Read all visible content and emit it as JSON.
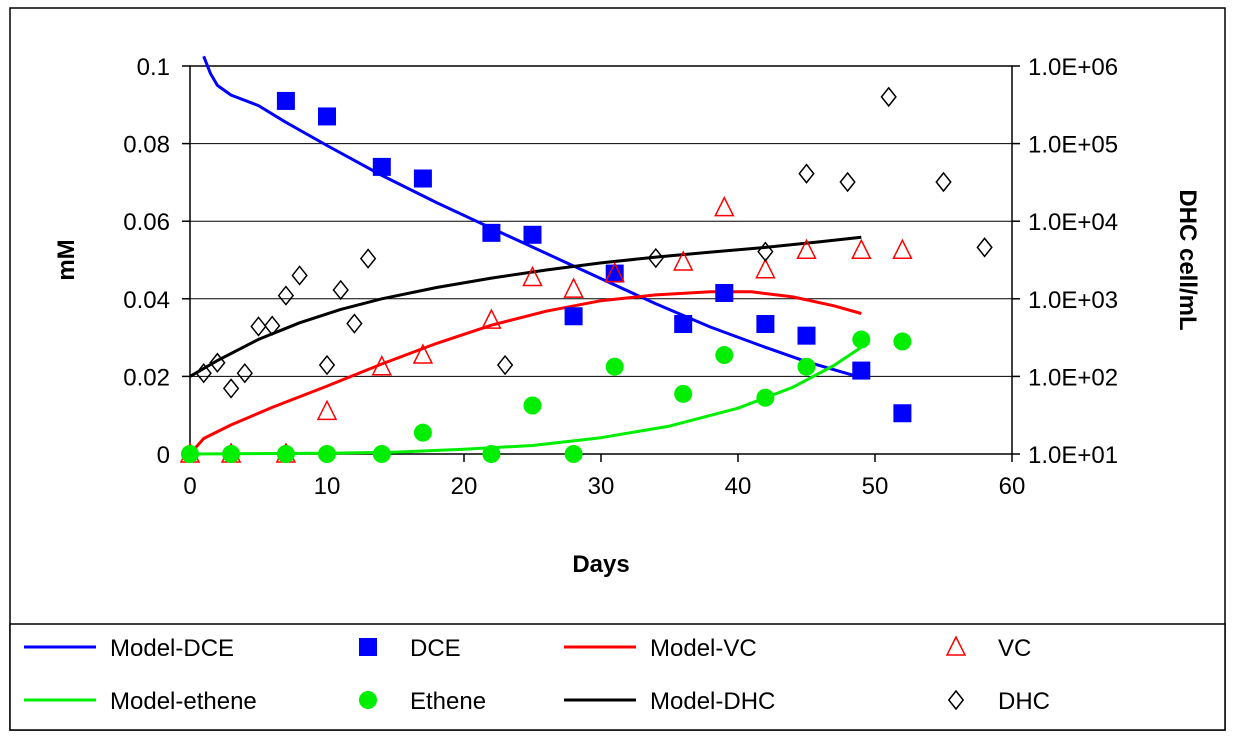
{
  "chart_data": {
    "type": "scatter",
    "xlabel": "Days",
    "ylabel": "mM",
    "y2label": "DHC cell/mL",
    "xlim": [
      0,
      60
    ],
    "ylim": [
      0,
      0.1
    ],
    "y2lim": [
      10,
      1000000
    ],
    "y2scale": "log",
    "grid": "horizontal major gridlines",
    "legend_position": "bottom",
    "x_ticks": [
      "0",
      "10",
      "20",
      "30",
      "40",
      "50",
      "60"
    ],
    "y_ticks": [
      "0",
      "0.02",
      "0.04",
      "0.06",
      "0.08",
      "0.1"
    ],
    "y2_ticks": [
      "1.0E+01",
      "1.0E+02",
      "1.0E+03",
      "1.0E+04",
      "1.0E+05",
      "1.0E+06"
    ],
    "series": [
      {
        "name": "Model-DCE",
        "kind": "line",
        "axis": "left",
        "color": "#0000ff",
        "points": [
          [
            1,
            0.1025
          ],
          [
            1.5,
            0.098
          ],
          [
            2,
            0.095
          ],
          [
            3,
            0.0925
          ],
          [
            5,
            0.0898
          ],
          [
            7,
            0.0855
          ],
          [
            10,
            0.0795
          ],
          [
            14,
            0.0718
          ],
          [
            18,
            0.0648
          ],
          [
            22,
            0.0582
          ],
          [
            26,
            0.0517
          ],
          [
            30,
            0.0452
          ],
          [
            34,
            0.0387
          ],
          [
            38,
            0.0327
          ],
          [
            42,
            0.0275
          ],
          [
            45,
            0.0238
          ],
          [
            47.5,
            0.0212
          ],
          [
            49,
            0.0197
          ]
        ]
      },
      {
        "name": "DCE",
        "kind": "scatter",
        "marker": "square",
        "axis": "left",
        "color": "#0000ff",
        "points": [
          [
            7,
            0.091
          ],
          [
            10,
            0.087
          ],
          [
            14,
            0.074
          ],
          [
            17,
            0.071
          ],
          [
            22,
            0.057
          ],
          [
            25,
            0.0565
          ],
          [
            28,
            0.0355
          ],
          [
            31,
            0.0465
          ],
          [
            36,
            0.0335
          ],
          [
            39,
            0.0415
          ],
          [
            42,
            0.0335
          ],
          [
            45,
            0.0305
          ],
          [
            49,
            0.0215
          ],
          [
            52,
            0.0105
          ]
        ]
      },
      {
        "name": "Model-VC",
        "kind": "line",
        "axis": "left",
        "color": "#ff0000",
        "points": [
          [
            0,
            0
          ],
          [
            1,
            0.004
          ],
          [
            3,
            0.0075
          ],
          [
            6,
            0.012
          ],
          [
            10,
            0.0175
          ],
          [
            14,
            0.0232
          ],
          [
            18,
            0.0285
          ],
          [
            22,
            0.0332
          ],
          [
            26,
            0.0368
          ],
          [
            30,
            0.0395
          ],
          [
            34,
            0.041
          ],
          [
            38,
            0.0418
          ],
          [
            41,
            0.0418
          ],
          [
            44,
            0.0405
          ],
          [
            47,
            0.0382
          ],
          [
            49,
            0.0362
          ]
        ]
      },
      {
        "name": "VC",
        "kind": "scatter",
        "marker": "triangle-open",
        "axis": "left",
        "color": "#ff0000",
        "points": [
          [
            0,
            0
          ],
          [
            3,
            0
          ],
          [
            7,
            0
          ],
          [
            10,
            0.011
          ],
          [
            14,
            0.0225
          ],
          [
            17,
            0.0255
          ],
          [
            22,
            0.0345
          ],
          [
            25,
            0.0455
          ],
          [
            28,
            0.0425
          ],
          [
            31,
            0.0465
          ],
          [
            36,
            0.0495
          ],
          [
            39,
            0.0635
          ],
          [
            42,
            0.0475
          ],
          [
            45,
            0.0525
          ],
          [
            49,
            0.0525
          ],
          [
            52,
            0.0525
          ]
        ]
      },
      {
        "name": "Model-ethene",
        "kind": "line",
        "axis": "left",
        "color": "#00ee00",
        "points": [
          [
            0,
            0
          ],
          [
            10,
            0.0002
          ],
          [
            15,
            0.0005
          ],
          [
            20,
            0.0012
          ],
          [
            25,
            0.0022
          ],
          [
            30,
            0.0042
          ],
          [
            35,
            0.0072
          ],
          [
            40,
            0.0118
          ],
          [
            44,
            0.0172
          ],
          [
            47,
            0.0228
          ],
          [
            49,
            0.0275
          ]
        ]
      },
      {
        "name": "Ethene",
        "kind": "scatter",
        "marker": "circle",
        "axis": "left",
        "color": "#00ee00",
        "points": [
          [
            0,
            0
          ],
          [
            3,
            0
          ],
          [
            7,
            0
          ],
          [
            10,
            0
          ],
          [
            14,
            0
          ],
          [
            17,
            0.0055
          ],
          [
            22,
            0
          ],
          [
            25,
            0.0125
          ],
          [
            28,
            0
          ],
          [
            31,
            0.0225
          ],
          [
            36,
            0.0155
          ],
          [
            39,
            0.0255
          ],
          [
            42,
            0.0145
          ],
          [
            45,
            0.0225
          ],
          [
            49,
            0.0295
          ],
          [
            52,
            0.029
          ]
        ]
      },
      {
        "name": "Model-DHC",
        "kind": "line",
        "axis": "right",
        "color": "#000000",
        "points": [
          [
            0,
            100
          ],
          [
            2,
            160
          ],
          [
            5,
            300
          ],
          [
            8,
            490
          ],
          [
            11,
            730
          ],
          [
            14,
            1000
          ],
          [
            18,
            1400
          ],
          [
            22,
            1850
          ],
          [
            26,
            2350
          ],
          [
            30,
            2900
          ],
          [
            34,
            3450
          ],
          [
            38,
            4000
          ],
          [
            42,
            4600
          ],
          [
            46,
            5450
          ],
          [
            49,
            6200
          ]
        ]
      },
      {
        "name": "DHC",
        "kind": "scatter",
        "marker": "diamond-open",
        "axis": "right",
        "color": "#000000",
        "points": [
          [
            1,
            110
          ],
          [
            2,
            150
          ],
          [
            3,
            70
          ],
          [
            4,
            110
          ],
          [
            5,
            440
          ],
          [
            6,
            450
          ],
          [
            7,
            1100
          ],
          [
            8,
            2000
          ],
          [
            10,
            140
          ],
          [
            11,
            1300
          ],
          [
            12,
            480
          ],
          [
            13,
            3300
          ],
          [
            23,
            140
          ],
          [
            34,
            3350
          ],
          [
            42,
            4050
          ],
          [
            45,
            41000
          ],
          [
            48,
            32000
          ],
          [
            51,
            400000
          ],
          [
            55,
            32000
          ],
          [
            58,
            4600
          ]
        ]
      }
    ]
  }
}
